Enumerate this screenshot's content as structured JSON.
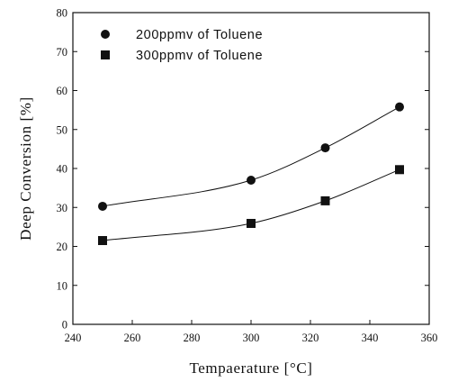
{
  "chart_data": {
    "type": "line",
    "x": [
      250,
      300,
      325,
      350
    ],
    "series": [
      {
        "name": "200ppmv of Toluene",
        "marker": "circle",
        "values": [
          30.3,
          37.0,
          45.3,
          55.8
        ]
      },
      {
        "name": "300ppmv of Toluene",
        "marker": "square",
        "values": [
          21.5,
          25.9,
          31.7,
          39.7
        ]
      }
    ],
    "xlabel": "Tempaerature [°C]",
    "ylabel": "Deep Conversion [%]",
    "xlim": [
      240,
      360
    ],
    "ylim": [
      0,
      80
    ],
    "xticks": [
      "240",
      "260",
      "280",
      "300",
      "320",
      "340",
      "360"
    ],
    "yticks": [
      "0",
      "10",
      "20",
      "30",
      "40",
      "50",
      "60",
      "70",
      "80"
    ],
    "grid": false,
    "legend_position": "top-left",
    "colors": {
      "marker": "#111111",
      "line": "#111111"
    }
  }
}
